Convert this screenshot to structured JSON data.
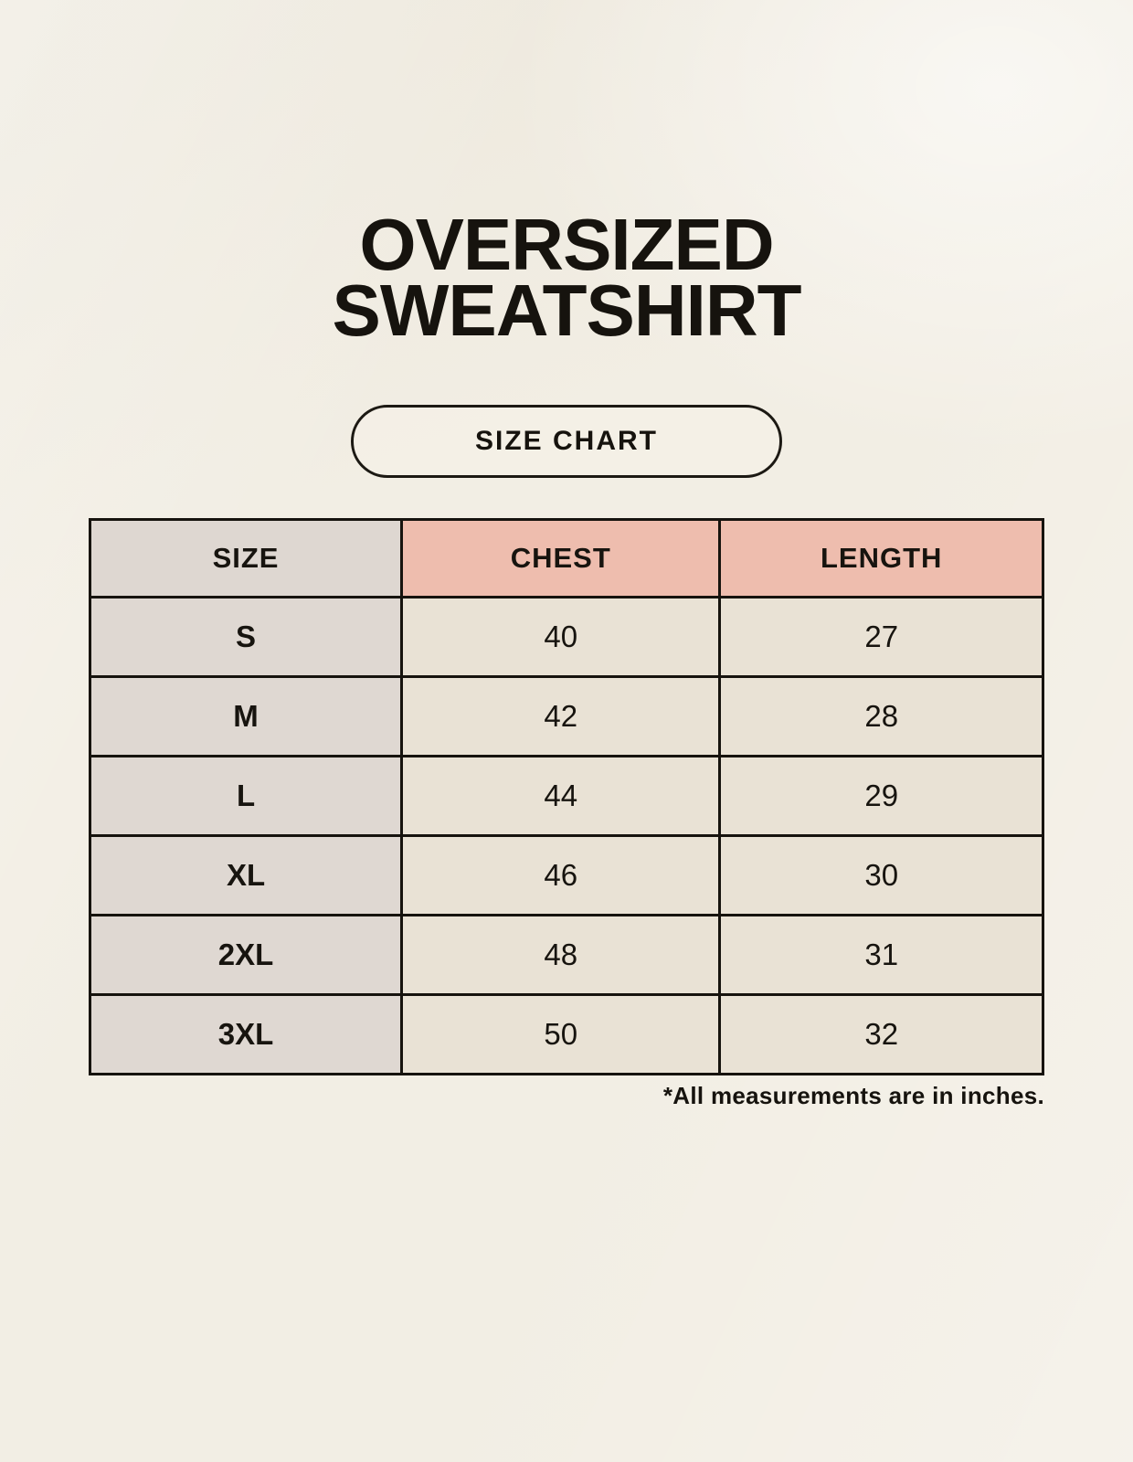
{
  "page": {
    "title_line1": "OVERSIZED",
    "title_line2": "SWEATSHIRT",
    "badge_label": "SIZE CHART",
    "footnote": "*All measurements are in inches."
  },
  "colors": {
    "background": "#f2eee4",
    "header_pink": "#eebdae",
    "size_column_gray": "#ded7d1",
    "value_cell_cream": "#e9e2d5",
    "border_black": "#16130e"
  },
  "chart_data": {
    "type": "table",
    "title": "OVERSIZED SWEATSHIRT SIZE CHART",
    "units": "inches",
    "columns": [
      "SIZE",
      "CHEST",
      "LENGTH"
    ],
    "rows": [
      [
        "S",
        "40",
        "27"
      ],
      [
        "M",
        "42",
        "28"
      ],
      [
        "L",
        "44",
        "29"
      ],
      [
        "XL",
        "46",
        "30"
      ],
      [
        "2XL",
        "48",
        "31"
      ],
      [
        "3XL",
        "50",
        "32"
      ]
    ]
  }
}
